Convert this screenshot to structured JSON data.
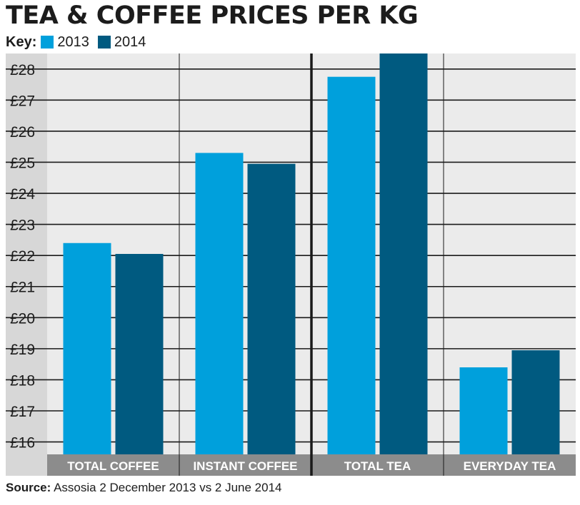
{
  "chart_data": {
    "type": "bar",
    "title": "TEA & COFFEE PRICES PER KG",
    "key_label": "Key:",
    "categories": [
      "TOTAL COFFEE",
      "INSTANT COFFEE",
      "TOTAL TEA",
      "EVERYDAY TEA"
    ],
    "series": [
      {
        "name": "2013",
        "color": "#00a0dc",
        "values": [
          22.4,
          25.3,
          27.75,
          18.4
        ]
      },
      {
        "name": "2014",
        "color": "#005a80",
        "values": [
          22.05,
          24.95,
          28.5,
          18.95
        ]
      }
    ],
    "y_ticks": [
      16,
      17,
      18,
      19,
      20,
      21,
      22,
      23,
      24,
      25,
      26,
      27,
      28
    ],
    "y_tick_labels": [
      "£16",
      "£17",
      "£18",
      "£19",
      "£20",
      "£21",
      "£22",
      "£23",
      "£24",
      "£25",
      "£26",
      "£27",
      "£28"
    ],
    "ylim": [
      15.6,
      28.5
    ],
    "currency": "£",
    "xlabel": "",
    "ylabel": "",
    "grid": true,
    "source_label": "Source:",
    "source_text": " Assosia 2 December 2013 vs 2 June 2014"
  },
  "colors": {
    "plot_background": "#ebebeb",
    "axis_background": "#d7d7d7",
    "category_band": "#8c8c8c",
    "divider": "#1a1a1a"
  }
}
